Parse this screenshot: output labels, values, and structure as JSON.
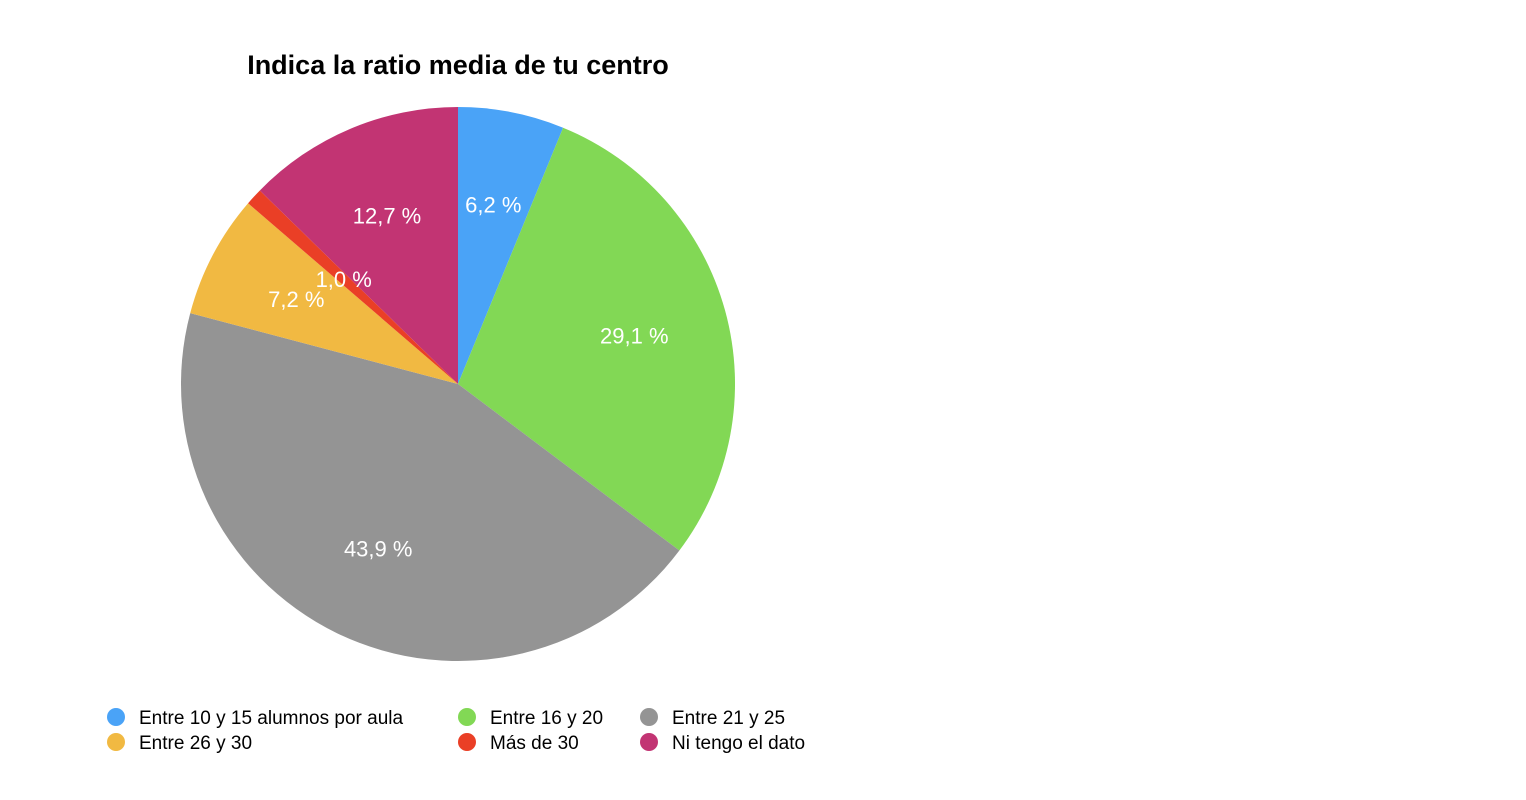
{
  "chart_data": {
    "type": "pie",
    "title": "Indica la ratio media de tu centro",
    "slices": [
      {
        "name": "Entre 10 y 15 alumnos por aula",
        "value": 6.2,
        "label": "6,2 %",
        "color": "#4aa3f7"
      },
      {
        "name": "Entre 16 y 20",
        "value": 29.1,
        "label": "29,1 %",
        "color": "#82d855"
      },
      {
        "name": "Entre 21 y 25",
        "value": 43.9,
        "label": "43,9 %",
        "color": "#949494"
      },
      {
        "name": "Entre 26 y 30",
        "value": 7.2,
        "label": "7,2 %",
        "color": "#f1b942"
      },
      {
        "name": "Más de 30",
        "value": 1.0,
        "label": "1,0 %",
        "color": "#ea3f26"
      },
      {
        "name": "Ni tengo el dato",
        "value": 12.7,
        "label": "12,7 %",
        "color": "#c23473"
      }
    ],
    "start": "12 o'clock",
    "direction": "clockwise",
    "legend": {
      "position": "bottom",
      "columns": 3
    }
  }
}
